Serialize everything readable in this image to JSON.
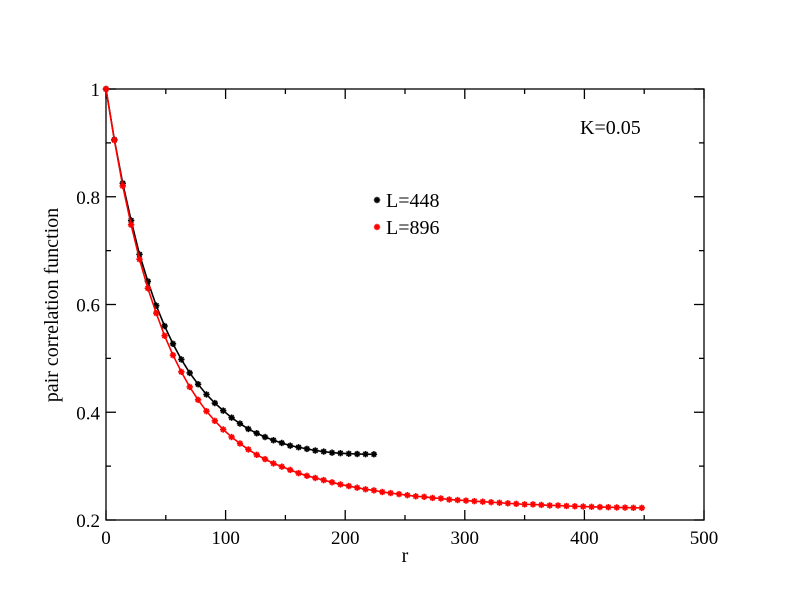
{
  "chart_data": {
    "type": "line",
    "title": "",
    "xlabel": "r",
    "ylabel": "pair correlation function",
    "xlim": [
      0,
      500
    ],
    "ylim": [
      0.2,
      1.0
    ],
    "x_ticks": [
      0,
      100,
      200,
      300,
      400,
      500
    ],
    "y_ticks": [
      0.2,
      0.4,
      0.6,
      0.8,
      1.0
    ],
    "x_tick_labels": [
      "0",
      "100",
      "200",
      "300",
      "400",
      "500"
    ],
    "y_tick_labels": [
      "0.2",
      "0.4",
      "0.6",
      "0.8",
      "1"
    ],
    "grid": false,
    "legend_position": "upper-center",
    "annotation": "K=0.05",
    "series": [
      {
        "name": "L=448",
        "color": "#000000",
        "x": [
          0,
          7,
          14,
          21,
          28,
          35,
          42,
          49,
          56,
          63,
          70,
          77,
          84,
          91,
          98,
          105,
          112,
          119,
          126,
          133,
          140,
          147,
          154,
          161,
          168,
          175,
          182,
          189,
          196,
          203,
          210,
          217,
          224
        ],
        "y": [
          1.0,
          0.906,
          0.825,
          0.756,
          0.693,
          0.643,
          0.598,
          0.56,
          0.527,
          0.498,
          0.473,
          0.452,
          0.433,
          0.417,
          0.403,
          0.39,
          0.379,
          0.369,
          0.361,
          0.354,
          0.348,
          0.343,
          0.338,
          0.335,
          0.332,
          0.329,
          0.327,
          0.325,
          0.324,
          0.323,
          0.3225,
          0.3222,
          0.322
        ]
      },
      {
        "name": "L=896",
        "color": "#ff0000",
        "x": [
          0,
          7,
          14,
          21,
          28,
          35,
          42,
          49,
          56,
          63,
          70,
          77,
          84,
          91,
          98,
          105,
          112,
          119,
          126,
          133,
          140,
          147,
          154,
          161,
          168,
          175,
          182,
          189,
          196,
          203,
          210,
          217,
          224,
          231,
          238,
          245,
          252,
          259,
          266,
          273,
          280,
          287,
          294,
          301,
          308,
          315,
          322,
          329,
          336,
          343,
          350,
          357,
          364,
          371,
          378,
          385,
          392,
          399,
          406,
          413,
          420,
          427,
          434,
          441,
          448
        ],
        "y": [
          1.0,
          0.905,
          0.82,
          0.748,
          0.684,
          0.63,
          0.584,
          0.542,
          0.506,
          0.475,
          0.447,
          0.423,
          0.402,
          0.384,
          0.368,
          0.354,
          0.342,
          0.331,
          0.321,
          0.313,
          0.305,
          0.299,
          0.293,
          0.287,
          0.282,
          0.278,
          0.274,
          0.27,
          0.266,
          0.263,
          0.26,
          0.257,
          0.255,
          0.252,
          0.25,
          0.248,
          0.246,
          0.244,
          0.243,
          0.241,
          0.24,
          0.238,
          0.237,
          0.236,
          0.235,
          0.234,
          0.233,
          0.232,
          0.231,
          0.23,
          0.229,
          0.229,
          0.228,
          0.227,
          0.227,
          0.226,
          0.2255,
          0.225,
          0.2245,
          0.224,
          0.2237,
          0.2233,
          0.223,
          0.2227,
          0.2225
        ]
      }
    ]
  }
}
